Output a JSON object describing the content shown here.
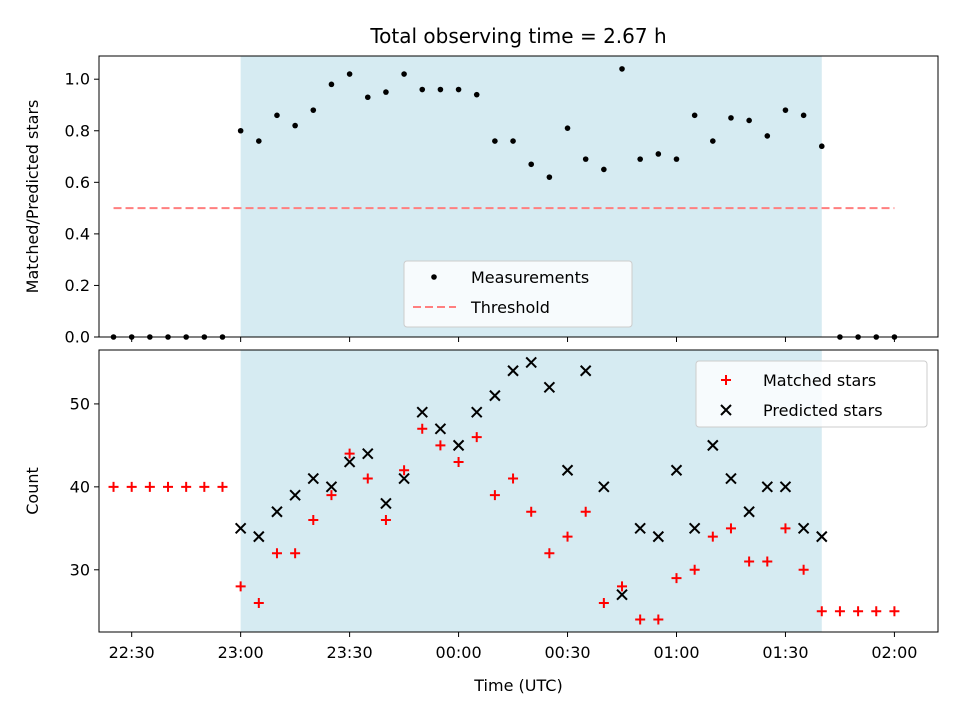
{
  "chart_data": [
    {
      "type": "scatter",
      "title": "Total observing time = 2.67 h",
      "ylabel": "Matched/Predicted stars",
      "xlabel": "",
      "xlim": [
        "22:21",
        "02:12"
      ],
      "ylim": [
        0,
        1.09
      ],
      "yticks": [
        "0.0",
        "0.2",
        "0.4",
        "0.6",
        "0.8",
        "1.0"
      ],
      "shaded_interval": [
        "23:00",
        "01:40"
      ],
      "shade_color": "#add8e6",
      "threshold": {
        "value": 0.5,
        "x_range": [
          "22:25",
          "02:00"
        ],
        "color": "#ff7f7f"
      },
      "legend": {
        "position": "lower-center",
        "entries": [
          "Measurements",
          "Threshold"
        ]
      },
      "series": [
        {
          "name": "Measurements",
          "color": "#000000",
          "x": [
            "22:25",
            "22:30",
            "22:35",
            "22:40",
            "22:45",
            "22:50",
            "22:55",
            "23:00",
            "23:05",
            "23:10",
            "23:15",
            "23:20",
            "23:25",
            "23:30",
            "23:35",
            "23:40",
            "23:45",
            "23:50",
            "23:55",
            "00:00",
            "00:05",
            "00:10",
            "00:15",
            "00:20",
            "00:25",
            "00:30",
            "00:35",
            "00:40",
            "00:45",
            "00:50",
            "00:55",
            "01:00",
            "01:05",
            "01:10",
            "01:15",
            "01:20",
            "01:25",
            "01:30",
            "01:35",
            "01:40",
            "01:45",
            "01:50",
            "01:55",
            "02:00"
          ],
          "y": [
            0,
            0,
            0,
            0,
            0,
            0,
            0,
            0.8,
            0.76,
            0.86,
            0.82,
            0.88,
            0.98,
            1.02,
            0.93,
            0.95,
            1.02,
            0.96,
            0.96,
            0.96,
            0.94,
            0.76,
            0.76,
            0.67,
            0.62,
            0.81,
            0.69,
            0.65,
            1.04,
            0.69,
            0.71,
            0.69,
            0.86,
            0.76,
            0.85,
            0.84,
            0.78,
            0.88,
            0.86,
            0.74,
            0,
            0,
            0,
            0
          ]
        }
      ]
    },
    {
      "type": "scatter",
      "title": "",
      "xlabel": "Time (UTC)",
      "ylabel": "Count",
      "xlim": [
        "22:21",
        "02:12"
      ],
      "ylim": [
        22.5,
        56.5
      ],
      "xticks": [
        "22:30",
        "23:00",
        "23:30",
        "00:00",
        "00:30",
        "01:00",
        "01:30",
        "02:00"
      ],
      "yticks": [
        "30",
        "40",
        "50"
      ],
      "shaded_interval": [
        "23:00",
        "01:40"
      ],
      "legend": {
        "position": "top-right",
        "entries": [
          "Matched stars",
          "Predicted stars"
        ]
      },
      "series": [
        {
          "name": "Matched stars",
          "marker": "+",
          "color": "#ff0000",
          "x": [
            "22:25",
            "22:30",
            "22:35",
            "22:40",
            "22:45",
            "22:50",
            "22:55",
            "23:00",
            "23:05",
            "23:10",
            "23:15",
            "23:20",
            "23:25",
            "23:30",
            "23:35",
            "23:40",
            "23:45",
            "23:50",
            "23:55",
            "00:00",
            "00:05",
            "00:10",
            "00:15",
            "00:20",
            "00:25",
            "00:30",
            "00:35",
            "00:40",
            "00:45",
            "00:50",
            "00:55",
            "01:00",
            "01:05",
            "01:10",
            "01:15",
            "01:20",
            "01:25",
            "01:30",
            "01:35",
            "01:40",
            "01:45",
            "01:50",
            "01:55",
            "02:00"
          ],
          "y": [
            40,
            40,
            40,
            40,
            40,
            40,
            40,
            28,
            26,
            32,
            32,
            36,
            39,
            44,
            41,
            36,
            42,
            47,
            45,
            43,
            46,
            39,
            41,
            37,
            32,
            34,
            37,
            26,
            28,
            24,
            24,
            29,
            30,
            34,
            35,
            31,
            31,
            35,
            30,
            25,
            25,
            25,
            25,
            25
          ]
        },
        {
          "name": "Predicted stars",
          "marker": "x",
          "color": "#000000",
          "x": [
            "23:00",
            "23:05",
            "23:10",
            "23:15",
            "23:20",
            "23:25",
            "23:30",
            "23:35",
            "23:40",
            "23:45",
            "23:50",
            "23:55",
            "00:00",
            "00:05",
            "00:10",
            "00:15",
            "00:20",
            "00:25",
            "00:30",
            "00:35",
            "00:40",
            "00:45",
            "00:50",
            "00:55",
            "01:00",
            "01:05",
            "01:10",
            "01:15",
            "01:20",
            "01:25",
            "01:30",
            "01:35",
            "01:40"
          ],
          "y": [
            35,
            34,
            37,
            39,
            41,
            40,
            43,
            44,
            38,
            41,
            49,
            47,
            45,
            49,
            51,
            54,
            55,
            52,
            42,
            54,
            40,
            27,
            35,
            34,
            42,
            35,
            45,
            41,
            37,
            40,
            40,
            35,
            34
          ]
        }
      ]
    }
  ]
}
